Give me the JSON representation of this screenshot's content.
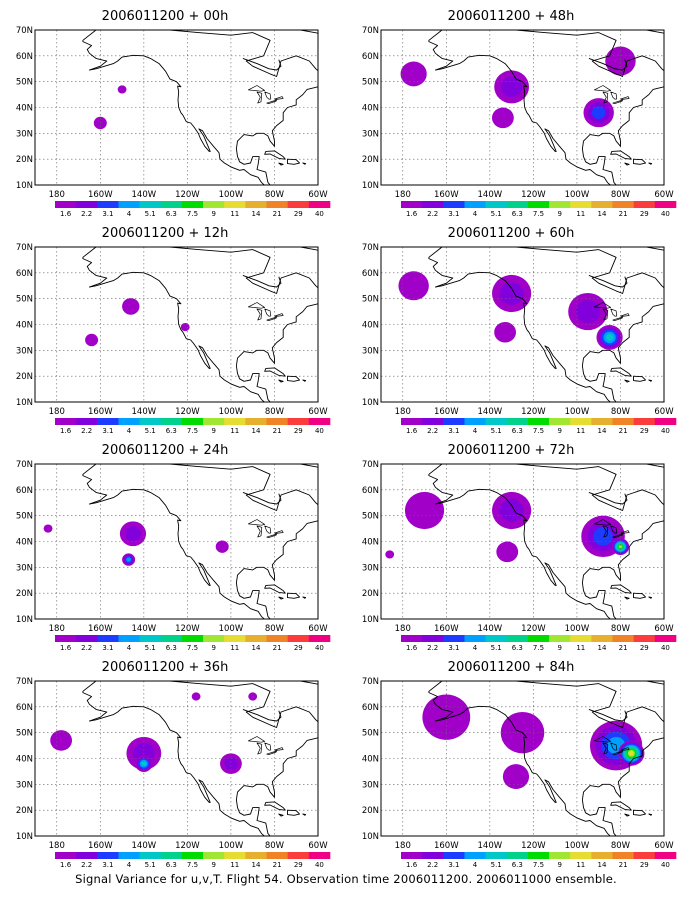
{
  "figure": {
    "caption": "Signal Variance for u,v,T. Flight 54. Observation time 2006011200. 2006011000 ensemble."
  },
  "map": {
    "lat_labels": [
      "10N",
      "20N",
      "30N",
      "40N",
      "50N",
      "60N",
      "70N"
    ],
    "lon_labels": [
      "180",
      "160W",
      "140W",
      "120W",
      "100W",
      "80W",
      "60W"
    ],
    "lon_range": [
      -190,
      -60
    ],
    "lat_range": [
      10,
      70
    ]
  },
  "colorbar": {
    "labels": [
      "1.6",
      "2.2",
      "3.1",
      "4",
      "5.1",
      "6.3",
      "7.5",
      "9",
      "11",
      "14",
      "21",
      "29",
      "40"
    ],
    "colors": [
      "#a000c8",
      "#8200dc",
      "#1e3cff",
      "#00a0ff",
      "#00c8c8",
      "#00d28c",
      "#00dc00",
      "#a0e632",
      "#e6dc32",
      "#e6af2d",
      "#f08228",
      "#fa3c3c",
      "#f00082"
    ]
  },
  "panels": [
    {
      "title": "2006011200 + 00h",
      "blobs": [
        {
          "lon": -160,
          "lat": 34,
          "r": 3,
          "level": 0
        },
        {
          "lon": -150,
          "lat": 47,
          "r": 2,
          "level": 0
        }
      ]
    },
    {
      "title": "2006011200 + 12h",
      "blobs": [
        {
          "lon": -164,
          "lat": 34,
          "r": 3,
          "level": 0
        },
        {
          "lon": -146,
          "lat": 47,
          "r": 4,
          "level": 0
        },
        {
          "lon": -121,
          "lat": 39,
          "r": 2,
          "level": 0
        }
      ]
    },
    {
      "title": "2006011200 + 24h",
      "blobs": [
        {
          "lon": -184,
          "lat": 45,
          "r": 2,
          "level": 0
        },
        {
          "lon": -145,
          "lat": 43,
          "r": 6,
          "level": 1
        },
        {
          "lon": -147,
          "lat": 33,
          "r": 3,
          "level": 3
        },
        {
          "lon": -104,
          "lat": 38,
          "r": 3,
          "level": 0
        }
      ]
    },
    {
      "title": "2006011200 + 36h",
      "blobs": [
        {
          "lon": -178,
          "lat": 47,
          "r": 5,
          "level": 0
        },
        {
          "lon": -140,
          "lat": 42,
          "r": 8,
          "level": 1
        },
        {
          "lon": -140,
          "lat": 38,
          "r": 4,
          "level": 4
        },
        {
          "lon": -100,
          "lat": 38,
          "r": 5,
          "level": 1
        },
        {
          "lon": -116,
          "lat": 64,
          "r": 2,
          "level": 0
        },
        {
          "lon": -90,
          "lat": 64,
          "r": 2,
          "level": 0
        }
      ]
    },
    {
      "title": "2006011200 + 48h",
      "blobs": [
        {
          "lon": -175,
          "lat": 53,
          "r": 6,
          "level": 0
        },
        {
          "lon": -130,
          "lat": 48,
          "r": 8,
          "level": 1
        },
        {
          "lon": -134,
          "lat": 36,
          "r": 5,
          "level": 0
        },
        {
          "lon": -90,
          "lat": 38,
          "r": 7,
          "level": 2
        },
        {
          "lon": -80,
          "lat": 58,
          "r": 7,
          "level": 0
        }
      ]
    },
    {
      "title": "2006011200 + 60h",
      "blobs": [
        {
          "lon": -175,
          "lat": 55,
          "r": 7,
          "level": 0
        },
        {
          "lon": -130,
          "lat": 52,
          "r": 9,
          "level": 1
        },
        {
          "lon": -133,
          "lat": 37,
          "r": 5,
          "level": 0
        },
        {
          "lon": -95,
          "lat": 45,
          "r": 9,
          "level": 1
        },
        {
          "lon": -85,
          "lat": 35,
          "r": 6,
          "level": 4
        }
      ]
    },
    {
      "title": "2006011200 + 72h",
      "blobs": [
        {
          "lon": -170,
          "lat": 52,
          "r": 9,
          "level": 0
        },
        {
          "lon": -130,
          "lat": 52,
          "r": 9,
          "level": 1
        },
        {
          "lon": -132,
          "lat": 36,
          "r": 5,
          "level": 0
        },
        {
          "lon": -88,
          "lat": 42,
          "r": 10,
          "level": 2
        },
        {
          "lon": -80,
          "lat": 38,
          "r": 4,
          "level": 7
        },
        {
          "lon": -186,
          "lat": 35,
          "r": 2,
          "level": 0
        }
      ]
    },
    {
      "title": "2006011200 + 84h",
      "blobs": [
        {
          "lon": -160,
          "lat": 56,
          "r": 11,
          "level": 0
        },
        {
          "lon": -125,
          "lat": 50,
          "r": 10,
          "level": 0
        },
        {
          "lon": -128,
          "lat": 33,
          "r": 6,
          "level": 0
        },
        {
          "lon": -82,
          "lat": 45,
          "r": 12,
          "level": 3
        },
        {
          "lon": -75,
          "lat": 42,
          "r": 6,
          "level": 8
        }
      ]
    }
  ]
}
